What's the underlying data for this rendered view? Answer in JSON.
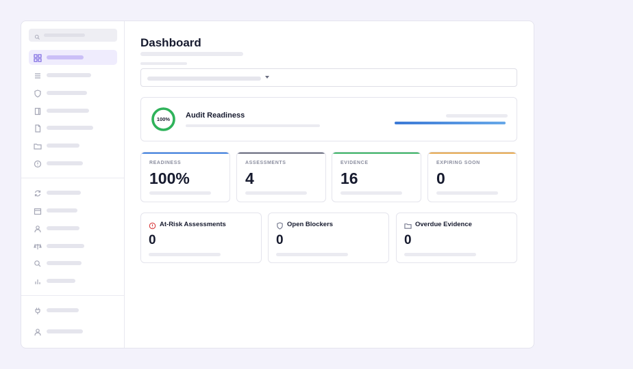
{
  "page": {
    "title": "Dashboard"
  },
  "readiness": {
    "title": "Audit Readiness",
    "percent_label": "100%",
    "percent": 100,
    "ring_color": "#2fb35a",
    "progress": 1.0
  },
  "stats": [
    {
      "label": "READINESS",
      "value": "100%",
      "accent": "#3b7ddd"
    },
    {
      "label": "ASSESSMENTS",
      "value": "4",
      "accent": "#6b6e80"
    },
    {
      "label": "EVIDENCE",
      "value": "16",
      "accent": "#37b162"
    },
    {
      "label": "EXPIRING SOON",
      "value": "0",
      "accent": "#e5a64a"
    }
  ],
  "alerts": [
    {
      "title": "At-Risk Assessments",
      "value": "0",
      "icon": "alert-circle-icon",
      "icon_color": "#d8393b"
    },
    {
      "title": "Open Blockers",
      "value": "0",
      "icon": "shield-icon",
      "icon_color": "#70748a"
    },
    {
      "title": "Overdue Evidence",
      "value": "0",
      "icon": "folder-icon",
      "icon_color": "#70748a"
    }
  ],
  "sidebar": {
    "search_icon": "search-icon",
    "items": [
      {
        "icon": "grid-icon",
        "active": true
      },
      {
        "icon": "list-icon"
      },
      {
        "icon": "shield-icon"
      },
      {
        "icon": "book-icon"
      },
      {
        "icon": "file-icon"
      },
      {
        "icon": "folder-icon"
      },
      {
        "icon": "alert-circle-icon"
      },
      {
        "icon": "refresh-icon"
      },
      {
        "icon": "calendar-icon"
      },
      {
        "icon": "user-icon"
      },
      {
        "icon": "scale-icon"
      },
      {
        "icon": "search-icon"
      },
      {
        "icon": "bar-chart-icon"
      },
      {
        "icon": "plug-icon"
      },
      {
        "icon": "user-icon"
      }
    ]
  },
  "colors": {
    "accent": "#7b68e0",
    "background": "#f3f2fb"
  }
}
